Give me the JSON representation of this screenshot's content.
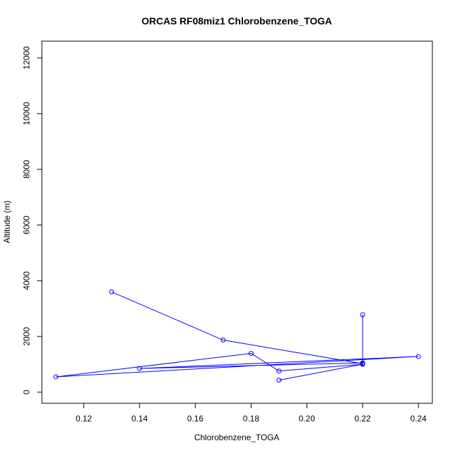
{
  "chart_data": {
    "type": "line",
    "title": "ORCAS RF08miz1 Chlorobenzene_TOGA",
    "xlabel": "Chlorobenzene_TOGA",
    "ylabel": "Altitude (m)",
    "xlim": [
      0.105,
      0.245
    ],
    "ylim": [
      -400,
      12600
    ],
    "xticks": [
      0.12,
      0.14,
      0.16,
      0.18,
      0.2,
      0.22,
      0.24
    ],
    "xtick_labels": [
      "0.12",
      "0.14",
      "0.16",
      "0.18",
      "0.20",
      "0.22",
      "0.24"
    ],
    "yticks": [
      0,
      2000,
      4000,
      6000,
      8000,
      10000,
      12000
    ],
    "ytick_labels": [
      "0",
      "2000",
      "4000",
      "6000",
      "8000",
      "10000",
      "12000"
    ],
    "grid": false,
    "legend": "none",
    "series": [
      {
        "color": "#0000ff",
        "marker": "open-circle",
        "x": [
          0.13,
          0.17,
          0.22,
          0.22,
          0.22,
          0.14,
          0.24,
          0.11,
          0.18,
          0.19,
          0.22,
          0.19
        ],
        "y": [
          3600,
          1870,
          1020,
          2780,
          1050,
          850,
          1280,
          550,
          1390,
          760,
          1000,
          430
        ]
      }
    ]
  }
}
